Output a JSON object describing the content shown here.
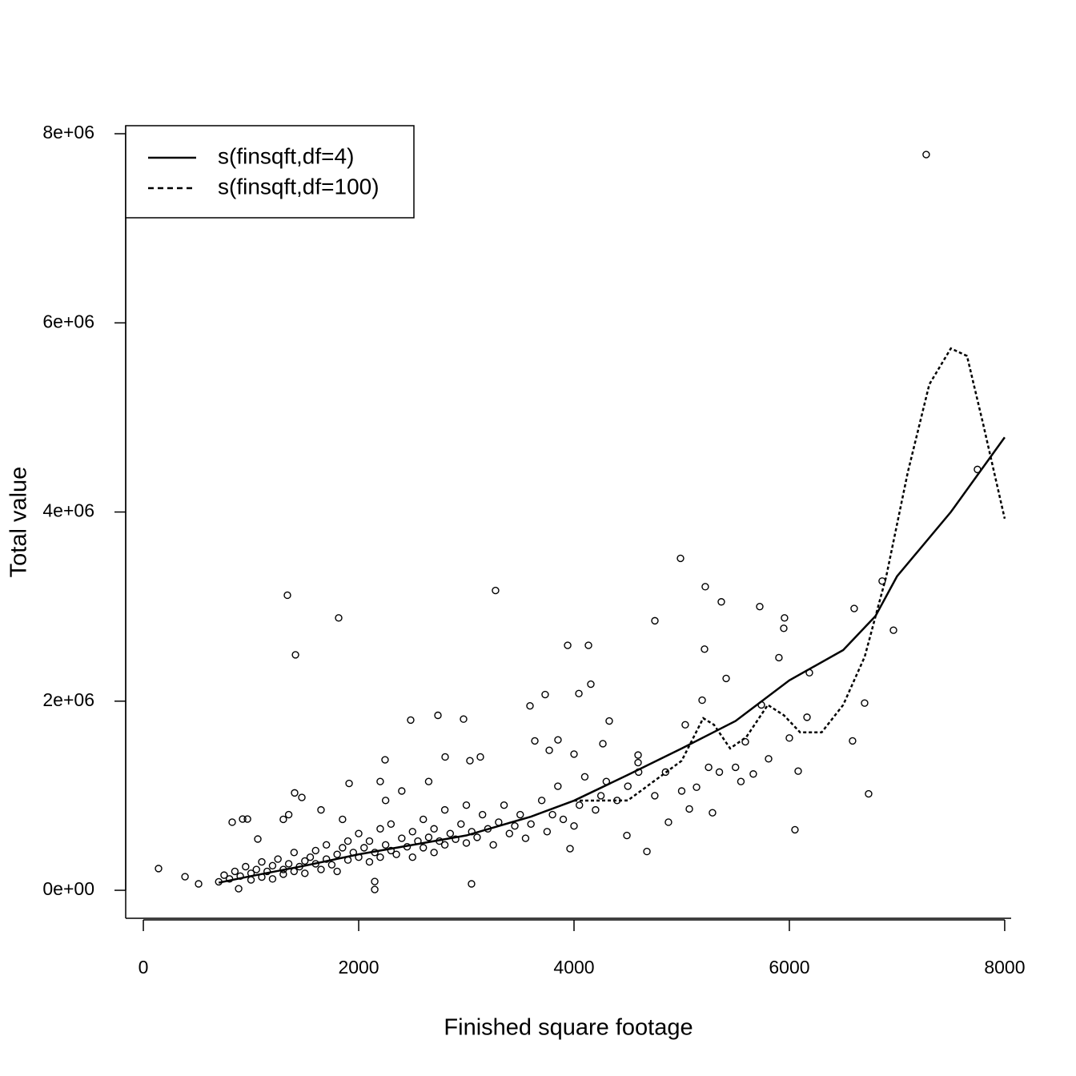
{
  "chart_data": {
    "type": "scatter",
    "x_label": "Finished square footage",
    "y_label": "Total value",
    "xlim": [
      -164,
      8060
    ],
    "ylim": [
      -296000,
      8085000
    ],
    "xticks": [
      0,
      2000,
      4000,
      6000,
      8000
    ],
    "yticks": [
      {
        "value": 0,
        "label": "0e+00"
      },
      {
        "value": 2000000,
        "label": "2e+06"
      },
      {
        "value": 4000000,
        "label": "4e+06"
      },
      {
        "value": 6000000,
        "label": "6e+06"
      },
      {
        "value": 8000000,
        "label": "8e+06"
      }
    ],
    "legend": "top-left",
    "points": {
      "color": "#000000",
      "x": [
        141,
        7271,
        7747,
        1338,
        1814,
        1413,
        3271,
        4989,
        5219,
        5368,
        5725,
        5955,
        5948,
        3941,
        4134,
        4751,
        5212,
        5903,
        6602,
        6862,
        6967,
        6186,
        5413,
        4156,
        4045,
        3732,
        3591,
        5190,
        6699,
        5740,
        6164,
        2736,
        2974,
        2483,
        6587,
        6000,
        6052,
        6736,
        6082,
        5033,
        5591,
        5807,
        5665,
        5138,
        5071,
        4877,
        5286,
        4677,
        4491,
        3963,
        3048,
        2149,
        2149,
        885,
        513,
        387,
        825,
        922,
        967,
        1063,
        1405,
        1472,
        1911,
        2245,
        2803,
        3130,
        3033,
        3636,
        3851,
        3770,
        4000,
        4327,
        4268,
        4595,
        4595,
        700,
        750,
        800,
        850,
        900,
        950,
        1000,
        1000,
        1050,
        1100,
        1100,
        1150,
        1200,
        1200,
        1250,
        1300,
        1300,
        1350,
        1400,
        1400,
        1450,
        1500,
        1500,
        1550,
        1600,
        1600,
        1650,
        1700,
        1700,
        1750,
        1800,
        1800,
        1850,
        1900,
        1900,
        1950,
        2000,
        2000,
        2050,
        2100,
        2100,
        2150,
        2200,
        2200,
        2250,
        2300,
        2300,
        2350,
        2400,
        2450,
        2500,
        2500,
        2550,
        2600,
        2600,
        2650,
        2700,
        2700,
        2750,
        2800,
        2800,
        2850,
        2900,
        2950,
        3000,
        3000,
        3050,
        3100,
        3150,
        3200,
        3250,
        3300,
        3350,
        3400,
        3450,
        3500,
        3550,
        3600,
        3700,
        3750,
        3800,
        3850,
        3900,
        4000,
        4050,
        4100,
        4200,
        4250,
        4300,
        4400,
        4500,
        4600,
        4750,
        4850,
        5000,
        5250,
        5350,
        5500,
        5550,
        1300,
        1350,
        1650,
        1850,
        2200,
        2250,
        2400,
        2650
      ],
      "y": [
        230000,
        7780000,
        4450000,
        3120000,
        2880000,
        2490000,
        3170000,
        3510000,
        3210000,
        3050000,
        3000000,
        2880000,
        2770000,
        2590000,
        2590000,
        2850000,
        2550000,
        2460000,
        2980000,
        3270000,
        2750000,
        2300000,
        2240000,
        2180000,
        2080000,
        2070000,
        1950000,
        2010000,
        1980000,
        1960000,
        1830000,
        1850000,
        1810000,
        1800000,
        1580000,
        1610000,
        640000,
        1020000,
        1260000,
        1750000,
        1570000,
        1390000,
        1230000,
        1090000,
        860000,
        720000,
        820000,
        410000,
        580000,
        440000,
        68000,
        8000,
        93000,
        17000,
        68000,
        144000,
        720000,
        753000,
        753000,
        542000,
        1030000,
        982000,
        1130000,
        1380000,
        1410000,
        1410000,
        1370000,
        1580000,
        1590000,
        1480000,
        1440000,
        1790000,
        1550000,
        1430000,
        1350000,
        90000,
        160000,
        120000,
        200000,
        150000,
        250000,
        180000,
        110000,
        220000,
        140000,
        300000,
        200000,
        260000,
        120000,
        330000,
        220000,
        170000,
        280000,
        400000,
        200000,
        250000,
        310000,
        180000,
        350000,
        280000,
        420000,
        220000,
        330000,
        480000,
        270000,
        380000,
        200000,
        450000,
        320000,
        520000,
        400000,
        350000,
        600000,
        450000,
        300000,
        520000,
        400000,
        650000,
        350000,
        480000,
        420000,
        700000,
        380000,
        550000,
        460000,
        620000,
        350000,
        520000,
        750000,
        450000,
        560000,
        400000,
        650000,
        520000,
        850000,
        480000,
        600000,
        540000,
        700000,
        500000,
        900000,
        620000,
        560000,
        800000,
        650000,
        480000,
        720000,
        900000,
        600000,
        680000,
        800000,
        550000,
        700000,
        950000,
        620000,
        800000,
        1100000,
        750000,
        680000,
        900000,
        1200000,
        850000,
        1000000,
        1150000,
        950000,
        1100000,
        1250000,
        1000000,
        1250000,
        1050000,
        1300000,
        1250000,
        1300000,
        1150000,
        750000,
        800000,
        850000,
        750000,
        1150000,
        950000,
        1050000,
        1150000
      ]
    },
    "series": [
      {
        "name": "s(finsqft,df=4)",
        "color": "#000000",
        "dash": "solid",
        "x": [
          700,
          1000,
          1500,
          2000,
          2500,
          3000,
          3600,
          4000,
          4500,
          5000,
          5500,
          6000,
          6500,
          6800,
          7000,
          7500,
          8000
        ],
        "values": [
          80000,
          150000,
          260000,
          380000,
          480000,
          580000,
          779000,
          948000,
          1220000,
          1500000,
          1790000,
          2220000,
          2540000,
          2900000,
          3320000,
          4000000,
          4790000
        ]
      },
      {
        "name": "s(finsqft,df=100)",
        "color": "#000000",
        "dash": "dashed",
        "x": [
          4000,
          4500,
          5000,
          5200,
          5300,
          5450,
          5600,
          5800,
          5950,
          6100,
          6300,
          6500,
          6700,
          6900,
          7100,
          7300,
          7500,
          7650,
          7800,
          8000
        ],
        "values": [
          948000,
          950000,
          1370000,
          1820000,
          1750000,
          1500000,
          1620000,
          1960000,
          1850000,
          1670000,
          1670000,
          1960000,
          2470000,
          3320000,
          4420000,
          5350000,
          5730000,
          5650000,
          4930000,
          3930000
        ]
      }
    ]
  }
}
